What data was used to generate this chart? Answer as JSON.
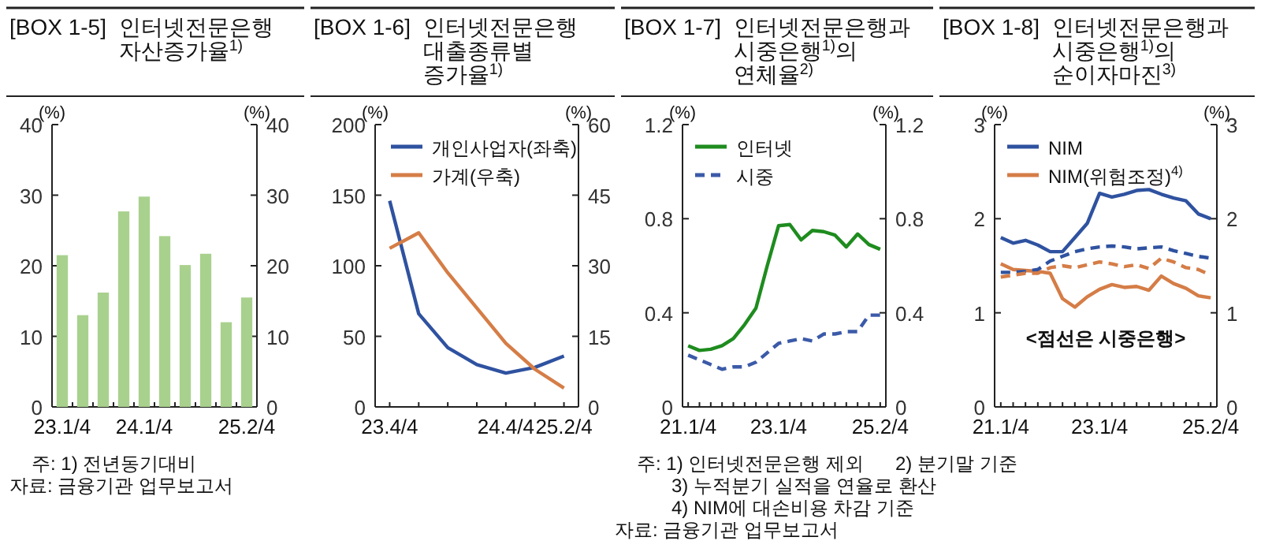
{
  "chart_data": [
    {
      "type": "bar",
      "title": "[BOX 1-5] 인터넷전문은행 자산증가율$^{1)}$",
      "ylabel": "(%)",
      "y2label": "(%)",
      "categories": [
        "23.1/4",
        null,
        null,
        null,
        "24.1/4",
        null,
        null,
        null,
        null,
        "25.2/4"
      ],
      "values": [
        21.5,
        13,
        16.2,
        27.7,
        29.8,
        24.2,
        20.1,
        21.7,
        12,
        15.5
      ],
      "color": "#a9d18e",
      "ylim": [
        0,
        40
      ],
      "yticks": [
        0,
        10,
        20,
        30,
        40
      ],
      "y2lim": [
        0,
        40
      ],
      "y2ticks": [
        0,
        10,
        20,
        30,
        40
      ],
      "annotations": [
        "주: 1) 전년동기대비",
        "자료: 금융기관 업무보고서"
      ]
    },
    {
      "type": "line",
      "title": "[BOX 1-6] 인터넷전문은행 대출종류별 증가율$^{1)}$",
      "ylabel": "(%)",
      "y2label": "(%)",
      "categories": [
        "23.4/4",
        null,
        null,
        null,
        "24.4/4",
        null,
        "25.2/4"
      ],
      "series": [
        {
          "name": "개인사업자(좌축)",
          "color": "#2f52a0",
          "values": [
            146,
            66,
            42,
            30,
            24,
            28,
            36
          ]
        },
        {
          "name": "가계(우축)",
          "color": "#d57d47",
          "axis": "y2",
          "values": [
            33.7,
            37,
            28.5,
            21,
            13.5,
            8,
            4
          ]
        }
      ],
      "ylim": [
        0,
        200
      ],
      "yticks": [
        0,
        50,
        100,
        150,
        200
      ],
      "y2lim": [
        0,
        60
      ],
      "y2ticks": [
        0,
        15,
        30,
        45,
        60
      ],
      "legend": "top"
    },
    {
      "type": "line",
      "title": "[BOX 1-7] 인터넷전문은행과 시중은행$^{1)}$의 연체율$^{2)}$",
      "ylabel": "(%)",
      "y2label": "(%)",
      "categories": [
        "21.1/4",
        null,
        null,
        null,
        null,
        null,
        null,
        null,
        "23.1/4",
        null,
        null,
        null,
        null,
        null,
        null,
        null,
        null,
        "25.2/4"
      ],
      "series": [
        {
          "name": "인터넷",
          "color": "#1e8c1e",
          "line_style": "solid",
          "values": [
            0.26,
            0.24,
            0.245,
            0.26,
            0.29,
            0.35,
            0.42,
            0.6,
            0.77,
            0.775,
            0.71,
            0.75,
            0.745,
            0.73,
            0.68,
            0.735,
            0.69,
            0.67
          ]
        },
        {
          "name": "시중",
          "color": "#3b5aa8",
          "line_style": "dashed",
          "values": [
            0.22,
            0.2,
            0.18,
            0.16,
            0.17,
            0.17,
            0.19,
            0.23,
            0.27,
            0.28,
            0.29,
            0.28,
            0.31,
            0.31,
            0.32,
            0.32,
            0.39,
            0.39
          ]
        }
      ],
      "ylim": [
        0,
        1.2
      ],
      "yticks": [
        0,
        0.4,
        0.8,
        1.2
      ],
      "y2lim": [
        0,
        1.2
      ],
      "y2ticks": [
        0,
        0.4,
        0.8,
        1.2
      ],
      "legend": "top left",
      "annotations": [
        "주: 1) 인터넷전문은행 제외      2) 분기말 기준",
        "3) 누적분기 실적을 연율로 환산",
        "4) NIM에 대손비용 차감 기준",
        "자료: 금융기관 업무보고서"
      ]
    },
    {
      "type": "line",
      "title": "[BOX 1-8] 인터넷전문은행과 시중은행$^{1)}$의 순이자마진$^{3)}$",
      "ylabel": "(%)",
      "y2label": "(%)",
      "categories": [
        "21.1/4",
        null,
        null,
        null,
        null,
        null,
        null,
        null,
        "23.1/4",
        null,
        null,
        null,
        null,
        null,
        null,
        null,
        null,
        "25.2/4"
      ],
      "series": [
        {
          "name": "NIM",
          "color": "#2f52a0",
          "line_style": "solid",
          "values": [
            1.8,
            1.74,
            1.77,
            1.72,
            1.65,
            1.65,
            1.8,
            1.95,
            2.27,
            2.23,
            2.26,
            2.3,
            2.31,
            2.26,
            2.22,
            2.19,
            2.05,
            2.0
          ]
        },
        {
          "name": "NIM(위험조정)$^{4)}$",
          "color": "#d57d47",
          "line_style": "solid",
          "values": [
            1.52,
            1.46,
            1.45,
            1.44,
            1.42,
            1.15,
            1.06,
            1.17,
            1.25,
            1.3,
            1.27,
            1.28,
            1.24,
            1.39,
            1.31,
            1.26,
            1.18,
            1.16
          ]
        },
        {
          "color": "#2f52a0",
          "line_style": "dashed",
          "values": [
            1.43,
            1.43,
            1.44,
            1.46,
            1.55,
            1.6,
            1.65,
            1.68,
            1.7,
            1.71,
            1.7,
            1.68,
            1.69,
            1.7,
            1.66,
            1.63,
            1.6,
            1.58
          ]
        },
        {
          "color": "#d57d47",
          "line_style": "dashed",
          "values": [
            1.38,
            1.4,
            1.42,
            1.42,
            1.48,
            1.5,
            1.48,
            1.51,
            1.54,
            1.52,
            1.49,
            1.51,
            1.47,
            1.58,
            1.54,
            1.48,
            1.46,
            1.4
          ]
        }
      ],
      "ylim": [
        0,
        3
      ],
      "yticks": [
        0,
        1,
        2,
        3
      ],
      "y2lim": [
        0,
        3
      ],
      "y2ticks": [
        0,
        1,
        2,
        3
      ],
      "legend": "top left",
      "annotations": [
        "<점선은 시중은행>"
      ]
    }
  ]
}
